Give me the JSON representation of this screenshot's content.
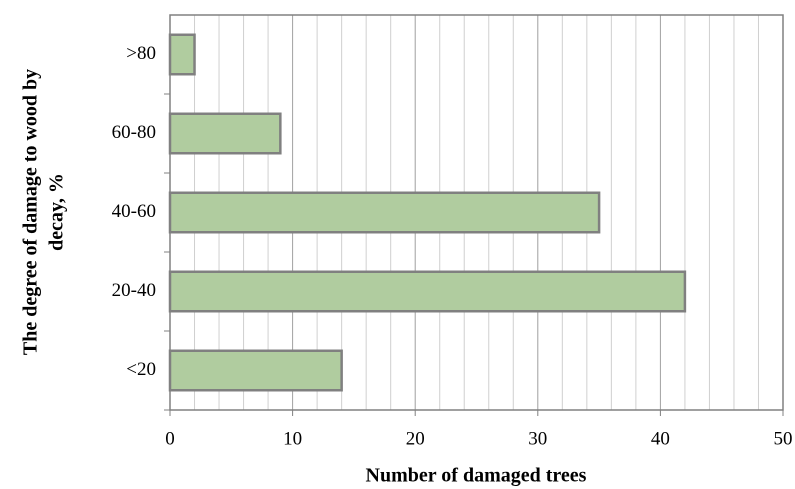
{
  "chart_data": {
    "type": "hbar",
    "categories": [
      "<20",
      "20-40",
      "40-60",
      "60-80",
      ">80"
    ],
    "values": [
      14,
      42,
      35,
      9,
      2
    ],
    "color": "#b0cc9f",
    "edgecolor": "#808080",
    "xlim": [
      0,
      50
    ],
    "xticks": [
      0,
      10,
      20,
      30,
      40,
      50
    ],
    "xminorticks": [
      2,
      4,
      6,
      8,
      12,
      14,
      16,
      18,
      22,
      24,
      26,
      28,
      32,
      34,
      36,
      38,
      42,
      44,
      46,
      48
    ],
    "grid": true,
    "xlabel": "Number of damaged trees",
    "ylabel": [
      "The degree of damage to wood by",
      "decay, %"
    ]
  }
}
